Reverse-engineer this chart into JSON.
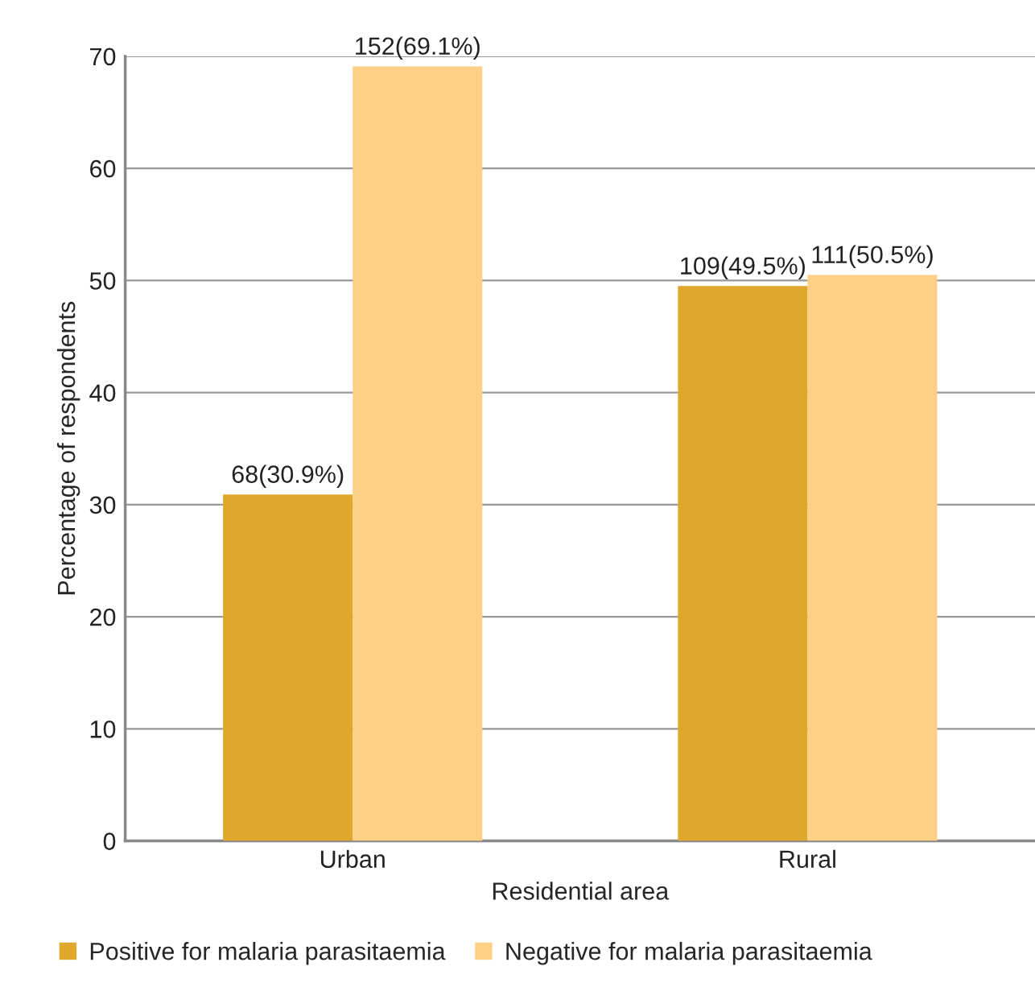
{
  "chart_data": {
    "type": "bar",
    "xlabel": "Residential area",
    "ylabel": "Percentage of respondents",
    "categories": [
      "Urban",
      "Rural"
    ],
    "series": [
      {
        "name": "Positive for malaria parasitaemia",
        "color": "#e0a82a",
        "values": [
          30.9,
          49.5
        ],
        "value_labels": [
          "68(30.9%)",
          "109(49.5%)"
        ]
      },
      {
        "name": "Negative for malaria parasitaemia",
        "color": "#fdd085",
        "values": [
          69.1,
          50.5
        ],
        "value_labels": [
          "152(69.1%)",
          "111(50.5%)"
        ]
      }
    ],
    "ylim": [
      0,
      70
    ],
    "yticks": [
      0,
      10,
      20,
      30,
      40,
      50,
      60,
      70
    ],
    "grid": "y",
    "legend": "bottom"
  }
}
